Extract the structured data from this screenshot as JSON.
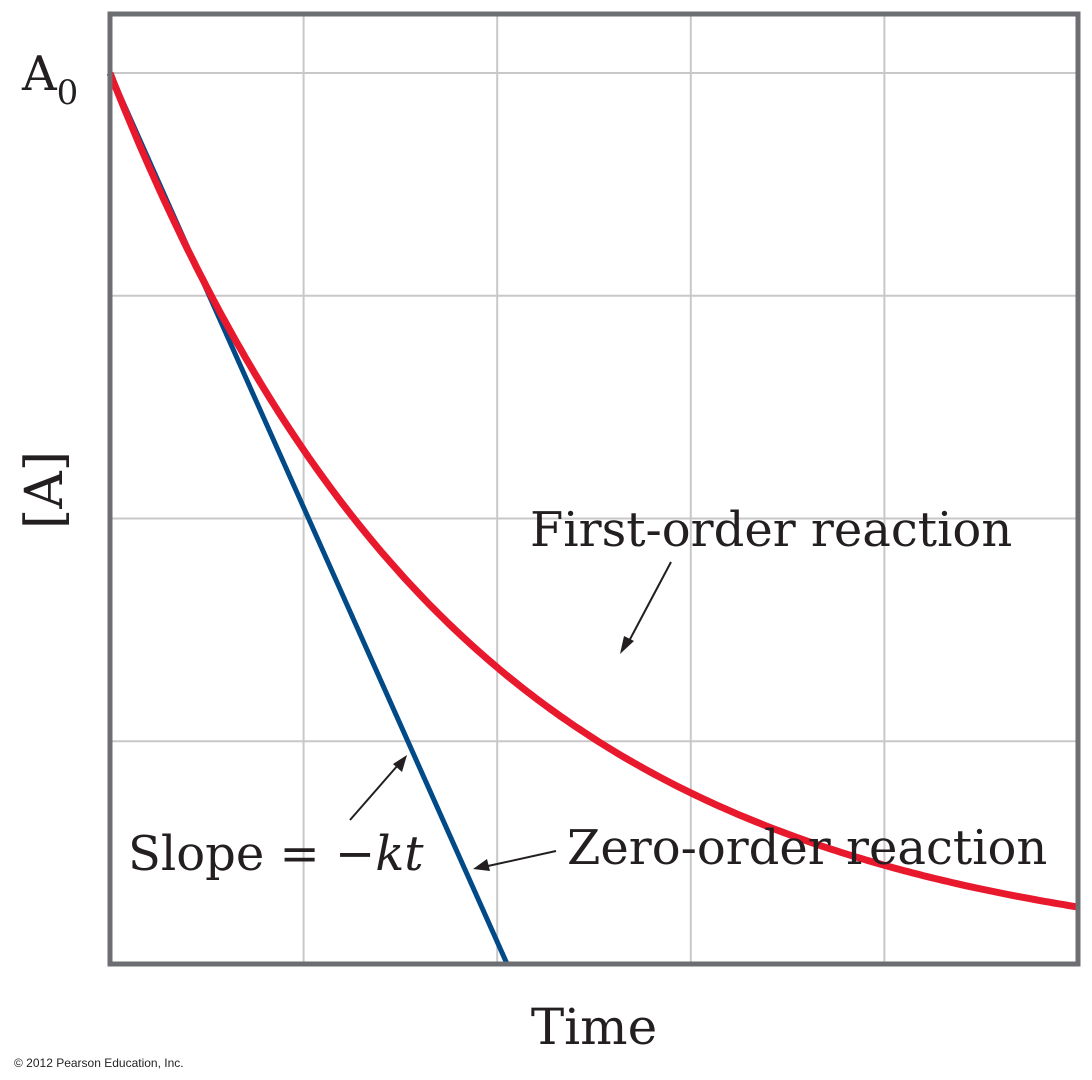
{
  "chart_data": {
    "type": "line",
    "ylabel": "[A]",
    "xlabel": "Time",
    "y_tick_label": {
      "base": "A",
      "subscript": "0"
    },
    "xlim": [
      0,
      5
    ],
    "ylim": [
      0,
      4
    ],
    "grid": true,
    "series": [
      {
        "name": "First-order reaction",
        "kind": "exponential",
        "A0": 4,
        "k": 0.55,
        "color": "#e8192c"
      },
      {
        "name": "Zero-order reaction",
        "kind": "linear",
        "A0": 4,
        "slope": -1.95,
        "color": "#004a87"
      }
    ],
    "annotations": {
      "slope_label_prefix": "Slope = −",
      "slope_label_italic": "kt"
    }
  },
  "copyright": "© 2012 Pearson Education, Inc.",
  "colors": {
    "frame": "#6d6e71",
    "grid": "#c8c8c8",
    "text": "#231f20"
  }
}
